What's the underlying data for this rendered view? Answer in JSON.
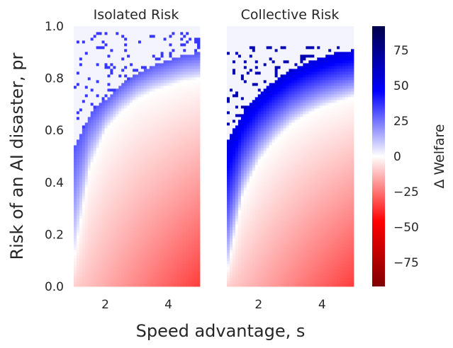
{
  "figure": {
    "xlabel": "Speed advantage, s",
    "ylabel": "Risk of an AI disaster, pr",
    "colorbar_label": "Δ Welfare"
  },
  "chart_data": [
    {
      "type": "heatmap",
      "title": "Isolated Risk",
      "xlim": [
        1,
        5
      ],
      "ylim": [
        0,
        1
      ],
      "x_ticks": [
        2,
        4
      ],
      "y_ticks": [
        0.0,
        0.2,
        0.4,
        0.6,
        0.8,
        1.0
      ],
      "boundary": {
        "s": [
          1,
          1.5,
          2,
          2.5,
          3,
          3.5,
          4,
          4.5,
          5
        ],
        "pr": [
          0.1,
          0.45,
          0.6,
          0.67,
          0.72,
          0.75,
          0.77,
          0.79,
          0.8
        ]
      },
      "upper_boundary": {
        "s": [
          1,
          1.5,
          2,
          2.5,
          3,
          3.5,
          4,
          4.5,
          5
        ],
        "pr": [
          0.53,
          0.66,
          0.72,
          0.78,
          0.82,
          0.85,
          0.87,
          0.89,
          0.9
        ]
      },
      "noise_band": [
        0.85,
        0.98
      ],
      "peak_delta_welfare": 30,
      "min_delta_welfare": -35
    },
    {
      "type": "heatmap",
      "title": "Collective Risk",
      "xlim": [
        1,
        5
      ],
      "ylim": [
        0,
        1
      ],
      "x_ticks": [
        2,
        4
      ],
      "y_ticks": [],
      "boundary": {
        "s": [
          1,
          1.5,
          2,
          2.5,
          3,
          3.5,
          4,
          4.5,
          5
        ],
        "pr": [
          0.05,
          0.35,
          0.48,
          0.56,
          0.62,
          0.66,
          0.69,
          0.71,
          0.73
        ]
      },
      "upper_boundary": {
        "s": [
          1,
          1.5,
          2,
          2.5,
          3,
          3.5,
          4,
          4.5,
          5
        ],
        "pr": [
          0.55,
          0.67,
          0.74,
          0.79,
          0.83,
          0.86,
          0.88,
          0.9,
          0.91
        ]
      },
      "noise_band": [
        0.73,
        0.92
      ],
      "peak_delta_welfare": 55,
      "min_delta_welfare": -35
    }
  ],
  "colorbar": {
    "range": [
      -92,
      92
    ],
    "ticks": [
      75,
      50,
      25,
      0,
      -25,
      -50,
      -75
    ],
    "colormap": "seismic",
    "colors": {
      "low": "#7f0000",
      "mid_low": "#ff0000",
      "center": "#ffffff",
      "mid_high": "#0000ff",
      "high": "#00004c"
    }
  }
}
